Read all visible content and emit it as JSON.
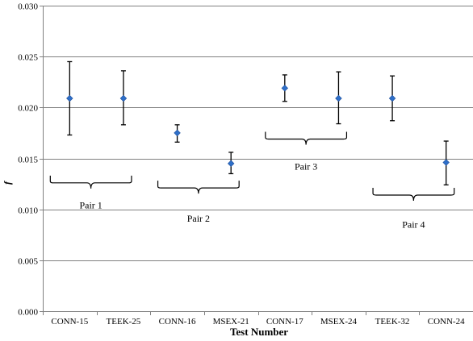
{
  "chart_data": {
    "type": "scatter",
    "title": "",
    "xlabel": "Test Number",
    "ylabel": "f",
    "ylim": [
      0,
      0.03
    ],
    "yticks": [
      "0.000",
      "0.005",
      "0.010",
      "0.015",
      "0.020",
      "0.025",
      "0.030"
    ],
    "grid": true,
    "categories": [
      "CONN-15",
      "TEEK-25",
      "CONN-16",
      "MSEX-21",
      "CONN-17",
      "MSEX-24",
      "TEEK-32",
      "CONN-24"
    ],
    "values": [
      0.0209,
      0.0209,
      0.0175,
      0.0145,
      0.0219,
      0.0209,
      0.0209,
      0.0146
    ],
    "error_upper": [
      0.0245,
      0.0236,
      0.0183,
      0.0156,
      0.0232,
      0.0235,
      0.0231,
      0.0167
    ],
    "error_lower": [
      0.0173,
      0.0183,
      0.0166,
      0.0135,
      0.0206,
      0.0184,
      0.0187,
      0.0124
    ],
    "marker_color": "#2e6fc9",
    "annotations": [
      {
        "text": "Pair 1",
        "from": 0,
        "to": 1,
        "brace_y": 0.0126,
        "label_y": 0.0101
      },
      {
        "text": "Pair 2",
        "from": 2,
        "to": 3,
        "brace_y": 0.0121,
        "label_y": 0.0088
      },
      {
        "text": "Pair 3",
        "from": 4,
        "to": 5,
        "brace_y": 0.0169,
        "label_y": 0.0139
      },
      {
        "text": "Pair 4",
        "from": 6,
        "to": 7,
        "brace_y": 0.0114,
        "label_y": 0.0082
      }
    ]
  }
}
